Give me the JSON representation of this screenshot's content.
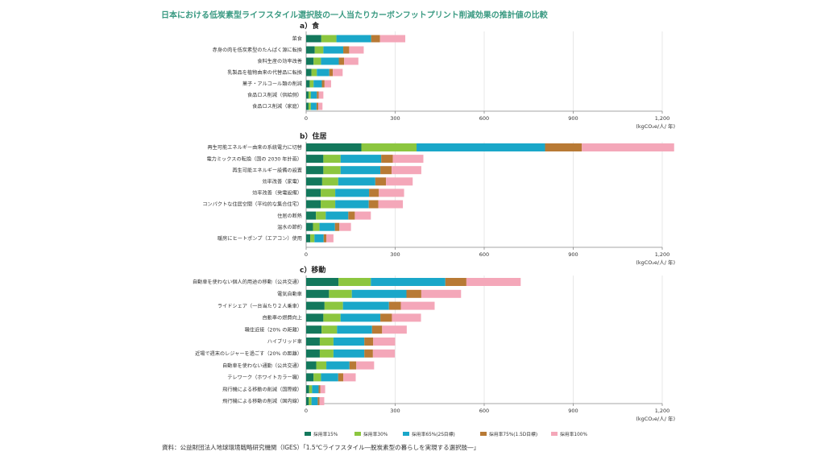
{
  "title": "日本における低炭素型ライフスタイル選択肢の一人当たりカーボンフットプリント削減効果の推計値の比較",
  "source": "資料：公益財団法人地球環境戦略研究機関（IGES）「1.5℃ライフスタイル―脱炭素型の暮らしを実現する選択肢―」",
  "colors": [
    "#13785c",
    "#8cc63f",
    "#1aa7c9",
    "#b87a35",
    "#f4a7b9"
  ],
  "chart_data": {
    "type": "bar",
    "orientation": "horizontal",
    "stacked": true,
    "unit": "(kgCO₂e/人/ 年)",
    "xlim": [
      0,
      1200
    ],
    "xticks": [
      "0",
      "300",
      "600",
      "900",
      "1,200"
    ],
    "legend_position": "bottom",
    "series_names": [
      "採用率15%",
      "採用率30%",
      "採用率65%(2S目標)",
      "採用率75%(1.5D目標)",
      "採用率100%"
    ],
    "panels": [
      {
        "title": "a）食",
        "categories": [
          "菜食",
          "赤身の肉を低炭素型のたんぱく源に転換",
          "食料生産の効率改善",
          "乳製品を植物由来の代替品に転換",
          "菓子・アルコール類の削減",
          "食品ロス削減（供給側）",
          "食品ロス削減（家庭）"
        ],
        "values": [
          [
            51,
            51,
            117,
            30,
            85
          ],
          [
            29,
            29,
            67,
            20,
            49
          ],
          [
            25,
            25,
            60,
            18,
            48
          ],
          [
            18,
            18,
            42,
            12,
            33
          ],
          [
            12,
            13,
            28,
            9,
            22
          ],
          [
            8,
            8,
            20,
            6,
            16
          ],
          [
            8,
            8,
            19,
            6,
            14
          ]
        ]
      },
      {
        "title": "b）住居",
        "categories": [
          "再生可能エネルギー由来の系統電力に切替",
          "電力ミックスの転換（国の 2030 年計画）",
          "再生可能エネルギー設備の設置",
          "効率改善（家電）",
          "効率改善（発電設備）",
          "コンパクトな住居空間（平均的な集合住宅）",
          "住居の断熱",
          "温水の節約",
          "暖房にヒートポンプ（エアコン）使用"
        ],
        "values": [
          [
            186,
            186,
            433,
            124,
            311
          ],
          [
            58,
            58,
            137,
            39,
            103
          ],
          [
            58,
            58,
            134,
            38,
            100
          ],
          [
            54,
            54,
            125,
            36,
            90
          ],
          [
            49,
            49,
            114,
            33,
            85
          ],
          [
            49,
            49,
            113,
            32,
            83
          ],
          [
            33,
            33,
            76,
            22,
            54
          ],
          [
            23,
            22,
            52,
            15,
            39
          ],
          [
            14,
            14,
            31,
            9,
            24
          ]
        ]
      },
      {
        "title": "c）移動",
        "categories": [
          "自動車を使わない個人的用途の移動（公共交通）",
          "電気自動車",
          "ライドシェア（一台当たり２人乗車）",
          "自動車の燃費向上",
          "職住近接（20% の距離）",
          "ハイブリッド車",
          "近場で週末のレジャーを過ごす（20% の距離）",
          "自動車を使わない通勤（公共交通）",
          "テレワーク（ホワイトカラー職）",
          "飛行機による移動の削減（国際線）",
          "飛行機による移動の削減（国内線）"
        ],
        "values": [
          [
            109,
            109,
            251,
            71,
            183
          ],
          [
            77,
            77,
            184,
            50,
            134
          ],
          [
            62,
            62,
            155,
            40,
            114
          ],
          [
            58,
            58,
            134,
            39,
            98
          ],
          [
            52,
            52,
            118,
            34,
            83
          ],
          [
            46,
            46,
            104,
            30,
            74
          ],
          [
            46,
            46,
            104,
            29,
            74
          ],
          [
            34,
            34,
            78,
            23,
            60
          ],
          [
            25,
            25,
            58,
            17,
            42
          ],
          [
            10,
            10,
            22,
            6,
            16
          ],
          [
            9,
            9,
            21,
            6,
            16
          ]
        ]
      }
    ]
  }
}
